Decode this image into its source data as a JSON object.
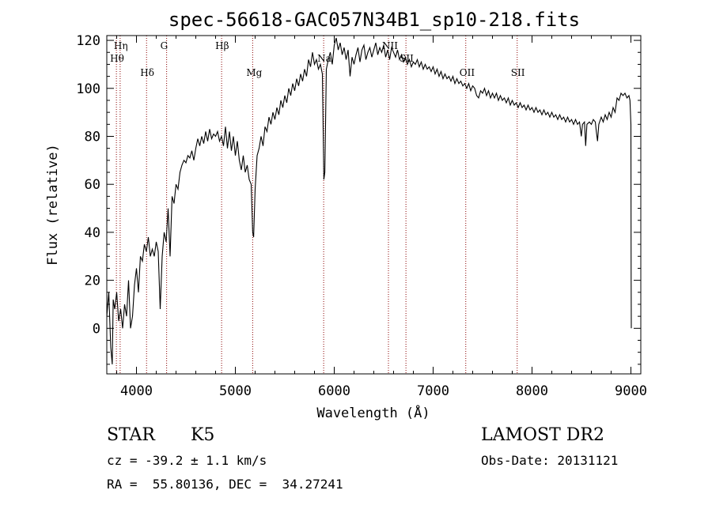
{
  "chart_data": {
    "type": "line",
    "title": "spec-56618-GAC057N34B1_sp10-218.fits",
    "xlabel": "Wavelength (Å)",
    "ylabel": "Flux (relative)",
    "xlim": [
      3700,
      9100
    ],
    "ylim": [
      -19,
      122
    ],
    "x_ticks": [
      4000,
      5000,
      6000,
      7000,
      8000,
      9000
    ],
    "y_ticks": [
      0,
      20,
      40,
      60,
      80,
      100,
      120
    ],
    "grid": false,
    "series": [
      {
        "color": "#000000",
        "points": [
          [
            3700,
            5
          ],
          [
            3720,
            15
          ],
          [
            3740,
            -8
          ],
          [
            3755,
            -15
          ],
          [
            3765,
            12
          ],
          [
            3780,
            8
          ],
          [
            3800,
            15
          ],
          [
            3820,
            3
          ],
          [
            3840,
            8
          ],
          [
            3860,
            0
          ],
          [
            3880,
            10
          ],
          [
            3900,
            5
          ],
          [
            3920,
            20
          ],
          [
            3940,
            0
          ],
          [
            3960,
            5
          ],
          [
            3980,
            18
          ],
          [
            4000,
            25
          ],
          [
            4020,
            15
          ],
          [
            4040,
            30
          ],
          [
            4060,
            28
          ],
          [
            4080,
            35
          ],
          [
            4100,
            32
          ],
          [
            4120,
            38
          ],
          [
            4140,
            30
          ],
          [
            4160,
            33
          ],
          [
            4180,
            30
          ],
          [
            4200,
            36
          ],
          [
            4220,
            32
          ],
          [
            4240,
            8
          ],
          [
            4260,
            30
          ],
          [
            4280,
            40
          ],
          [
            4300,
            36
          ],
          [
            4320,
            50
          ],
          [
            4340,
            30
          ],
          [
            4360,
            55
          ],
          [
            4380,
            52
          ],
          [
            4400,
            60
          ],
          [
            4420,
            58
          ],
          [
            4440,
            65
          ],
          [
            4460,
            68
          ],
          [
            4480,
            70
          ],
          [
            4500,
            69
          ],
          [
            4520,
            72
          ],
          [
            4540,
            71
          ],
          [
            4560,
            74
          ],
          [
            4580,
            70
          ],
          [
            4600,
            75
          ],
          [
            4620,
            79
          ],
          [
            4640,
            76
          ],
          [
            4660,
            80
          ],
          [
            4680,
            77
          ],
          [
            4700,
            82
          ],
          [
            4720,
            78
          ],
          [
            4740,
            83
          ],
          [
            4760,
            79
          ],
          [
            4780,
            81
          ],
          [
            4800,
            80
          ],
          [
            4820,
            82
          ],
          [
            4840,
            78
          ],
          [
            4860,
            80
          ],
          [
            4880,
            76
          ],
          [
            4900,
            84
          ],
          [
            4920,
            75
          ],
          [
            4940,
            82
          ],
          [
            4960,
            74
          ],
          [
            4980,
            80
          ],
          [
            5000,
            72
          ],
          [
            5020,
            78
          ],
          [
            5040,
            70
          ],
          [
            5060,
            66
          ],
          [
            5080,
            72
          ],
          [
            5100,
            65
          ],
          [
            5120,
            68
          ],
          [
            5140,
            62
          ],
          [
            5160,
            60
          ],
          [
            5175,
            40
          ],
          [
            5185,
            38
          ],
          [
            5200,
            58
          ],
          [
            5220,
            72
          ],
          [
            5240,
            75
          ],
          [
            5260,
            80
          ],
          [
            5280,
            76
          ],
          [
            5300,
            84
          ],
          [
            5320,
            82
          ],
          [
            5340,
            88
          ],
          [
            5360,
            85
          ],
          [
            5380,
            90
          ],
          [
            5400,
            87
          ],
          [
            5420,
            92
          ],
          [
            5440,
            89
          ],
          [
            5460,
            95
          ],
          [
            5480,
            92
          ],
          [
            5500,
            97
          ],
          [
            5520,
            94
          ],
          [
            5540,
            100
          ],
          [
            5560,
            97
          ],
          [
            5580,
            102
          ],
          [
            5600,
            99
          ],
          [
            5620,
            104
          ],
          [
            5640,
            101
          ],
          [
            5660,
            106
          ],
          [
            5680,
            103
          ],
          [
            5700,
            108
          ],
          [
            5720,
            105
          ],
          [
            5740,
            112
          ],
          [
            5760,
            109
          ],
          [
            5780,
            115
          ],
          [
            5800,
            110
          ],
          [
            5820,
            112
          ],
          [
            5840,
            108
          ],
          [
            5860,
            110
          ],
          [
            5880,
            106
          ],
          [
            5895,
            62
          ],
          [
            5905,
            65
          ],
          [
            5920,
            108
          ],
          [
            5940,
            112
          ],
          [
            5960,
            115
          ],
          [
            5980,
            110
          ],
          [
            6000,
            118
          ],
          [
            6020,
            121
          ],
          [
            6040,
            116
          ],
          [
            6060,
            119
          ],
          [
            6080,
            114
          ],
          [
            6100,
            117
          ],
          [
            6120,
            112
          ],
          [
            6140,
            116
          ],
          [
            6160,
            105
          ],
          [
            6180,
            113
          ],
          [
            6200,
            110
          ],
          [
            6220,
            114
          ],
          [
            6240,
            117
          ],
          [
            6260,
            111
          ],
          [
            6280,
            116
          ],
          [
            6300,
            118
          ],
          [
            6320,
            112
          ],
          [
            6340,
            115
          ],
          [
            6360,
            117
          ],
          [
            6380,
            113
          ],
          [
            6400,
            116
          ],
          [
            6420,
            119
          ],
          [
            6440,
            114
          ],
          [
            6460,
            117
          ],
          [
            6480,
            115
          ],
          [
            6500,
            118
          ],
          [
            6520,
            113
          ],
          [
            6540,
            116
          ],
          [
            6560,
            112
          ],
          [
            6580,
            117
          ],
          [
            6600,
            115
          ],
          [
            6620,
            113
          ],
          [
            6640,
            116
          ],
          [
            6660,
            112
          ],
          [
            6680,
            114
          ],
          [
            6700,
            111
          ],
          [
            6720,
            113
          ],
          [
            6740,
            110
          ],
          [
            6760,
            112
          ],
          [
            6780,
            109
          ],
          [
            6800,
            111
          ],
          [
            6820,
            110
          ],
          [
            6840,
            112
          ],
          [
            6860,
            109
          ],
          [
            6880,
            111
          ],
          [
            6900,
            108
          ],
          [
            6920,
            110
          ],
          [
            6940,
            108
          ],
          [
            6960,
            109
          ],
          [
            6980,
            107
          ],
          [
            7000,
            109
          ],
          [
            7020,
            106
          ],
          [
            7040,
            108
          ],
          [
            7060,
            105
          ],
          [
            7080,
            107
          ],
          [
            7100,
            104
          ],
          [
            7120,
            106
          ],
          [
            7140,
            104
          ],
          [
            7160,
            105
          ],
          [
            7180,
            103
          ],
          [
            7200,
            105
          ],
          [
            7220,
            102
          ],
          [
            7240,
            104
          ],
          [
            7260,
            102
          ],
          [
            7280,
            103
          ],
          [
            7300,
            101
          ],
          [
            7320,
            102
          ],
          [
            7340,
            100
          ],
          [
            7360,
            102
          ],
          [
            7380,
            99
          ],
          [
            7400,
            101
          ],
          [
            7420,
            100
          ],
          [
            7440,
            97
          ],
          [
            7460,
            96
          ],
          [
            7480,
            99
          ],
          [
            7500,
            98
          ],
          [
            7520,
            100
          ],
          [
            7540,
            97
          ],
          [
            7560,
            99
          ],
          [
            7580,
            96
          ],
          [
            7600,
            98
          ],
          [
            7620,
            96
          ],
          [
            7640,
            98
          ],
          [
            7660,
            95
          ],
          [
            7680,
            97
          ],
          [
            7700,
            95
          ],
          [
            7720,
            96
          ],
          [
            7740,
            94
          ],
          [
            7760,
            96
          ],
          [
            7780,
            93
          ],
          [
            7800,
            95
          ],
          [
            7820,
            93
          ],
          [
            7840,
            94
          ],
          [
            7860,
            92
          ],
          [
            7880,
            94
          ],
          [
            7900,
            92
          ],
          [
            7920,
            93
          ],
          [
            7940,
            91
          ],
          [
            7960,
            93
          ],
          [
            7980,
            91
          ],
          [
            8000,
            92
          ],
          [
            8020,
            90
          ],
          [
            8040,
            92
          ],
          [
            8060,
            90
          ],
          [
            8080,
            91
          ],
          [
            8100,
            89
          ],
          [
            8120,
            91
          ],
          [
            8140,
            89
          ],
          [
            8160,
            90
          ],
          [
            8180,
            88
          ],
          [
            8200,
            90
          ],
          [
            8220,
            88
          ],
          [
            8240,
            89
          ],
          [
            8260,
            87
          ],
          [
            8280,
            89
          ],
          [
            8300,
            87
          ],
          [
            8320,
            88
          ],
          [
            8340,
            86
          ],
          [
            8360,
            88
          ],
          [
            8380,
            86
          ],
          [
            8400,
            87
          ],
          [
            8420,
            85
          ],
          [
            8440,
            87
          ],
          [
            8460,
            85
          ],
          [
            8480,
            86
          ],
          [
            8498,
            80
          ],
          [
            8510,
            85
          ],
          [
            8530,
            86
          ],
          [
            8542,
            76
          ],
          [
            8555,
            85
          ],
          [
            8580,
            86
          ],
          [
            8600,
            85
          ],
          [
            8620,
            87
          ],
          [
            8640,
            86
          ],
          [
            8650,
            82
          ],
          [
            8662,
            78
          ],
          [
            8675,
            85
          ],
          [
            8700,
            88
          ],
          [
            8720,
            86
          ],
          [
            8740,
            89
          ],
          [
            8760,
            87
          ],
          [
            8780,
            90
          ],
          [
            8800,
            88
          ],
          [
            8820,
            92
          ],
          [
            8840,
            90
          ],
          [
            8860,
            96
          ],
          [
            8880,
            95
          ],
          [
            8900,
            98
          ],
          [
            8920,
            97
          ],
          [
            8940,
            98
          ],
          [
            8960,
            96
          ],
          [
            8980,
            97
          ],
          [
            8990,
            95
          ],
          [
            9000,
            85
          ],
          [
            9002,
            20
          ],
          [
            9004,
            0
          ]
        ]
      }
    ],
    "line_markers": [
      {
        "label": "Hη",
        "x": 3835
      },
      {
        "label": "Hθ",
        "x": 3797
      },
      {
        "label": "Hδ",
        "x": 4102
      },
      {
        "label": "G",
        "x": 4305
      },
      {
        "label": "Hβ",
        "x": 4861
      },
      {
        "label": "Mg",
        "x": 5175
      },
      {
        "label": "Na",
        "x": 5893
      },
      {
        "label": "NII",
        "x": 6548
      },
      {
        "label": "SII",
        "x": 6725
      },
      {
        "label": "OII",
        "x": 7330
      },
      {
        "label": "SII",
        "x": 7850
      }
    ],
    "marker_color": "#8b0000"
  },
  "info": {
    "object_class": "STAR",
    "subclass": "K5",
    "survey": "LAMOST DR2",
    "redshift_line": "cz = -39.2 ± 1.1 km/s",
    "obs_date_line": "Obs-Date: 20131121",
    "coords_line": "RA =  55.80136, DEC =  34.27241"
  }
}
